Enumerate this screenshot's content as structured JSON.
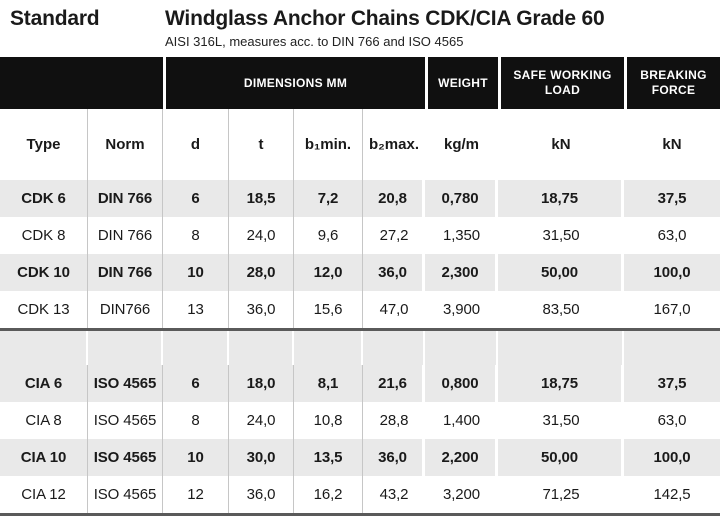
{
  "page": {
    "standard_label": "Standard",
    "title": "Windglass Anchor Chains CDK/CIA Grade 60",
    "subtitle": "AISI 316L, measures acc. to DIN 766 and ISO 4565"
  },
  "table": {
    "group_headers": [
      "",
      "DIMENSIONS MM",
      "WEIGHT",
      "SAFE WORKING LOAD",
      "BREAKING FORCE"
    ],
    "columns": [
      "Type",
      "Norm",
      "d",
      "t",
      "b₁min.",
      "b₂max.",
      "kg/m",
      "kN",
      "kN"
    ],
    "sections": [
      {
        "rows": [
          {
            "shaded": true,
            "cells": [
              "CDK 6",
              "DIN 766",
              "6",
              "18,5",
              "7,2",
              "20,8",
              "0,780",
              "18,75",
              "37,5"
            ]
          },
          {
            "shaded": false,
            "cells": [
              "CDK 8",
              "DIN 766",
              "8",
              "24,0",
              "9,6",
              "27,2",
              "1,350",
              "31,50",
              "63,0"
            ]
          },
          {
            "shaded": true,
            "cells": [
              "CDK 10",
              "DIN 766",
              "10",
              "28,0",
              "12,0",
              "36,0",
              "2,300",
              "50,00",
              "100,0"
            ]
          },
          {
            "shaded": false,
            "cells": [
              "CDK 13",
              "DIN766",
              "13",
              "36,0",
              "15,6",
              "47,0",
              "3,900",
              "83,50",
              "167,0"
            ]
          }
        ]
      },
      {
        "rows": [
          {
            "shaded": true,
            "cells": [
              "CIA 6",
              "ISO 4565",
              "6",
              "18,0",
              "8,1",
              "21,6",
              "0,800",
              "18,75",
              "37,5"
            ]
          },
          {
            "shaded": false,
            "cells": [
              "CIA 8",
              "ISO 4565",
              "8",
              "24,0",
              "10,8",
              "28,8",
              "1,400",
              "31,50",
              "63,0"
            ]
          },
          {
            "shaded": true,
            "cells": [
              "CIA 10",
              "ISO 4565",
              "10",
              "30,0",
              "13,5",
              "36,0",
              "2,200",
              "50,00",
              "100,0"
            ]
          },
          {
            "shaded": false,
            "cells": [
              "CIA 12",
              "ISO 4565",
              "12",
              "36,0",
              "16,2",
              "43,2",
              "3,200",
              "71,25",
              "142,5"
            ]
          }
        ]
      }
    ]
  },
  "colors": {
    "band_bg": "#101010",
    "band_text": "#ffffff",
    "shaded_row_bg": "#e9e9e9",
    "rule": "#5a5a5a",
    "border": "#c6c6c6",
    "text": "#1a1a1a"
  }
}
